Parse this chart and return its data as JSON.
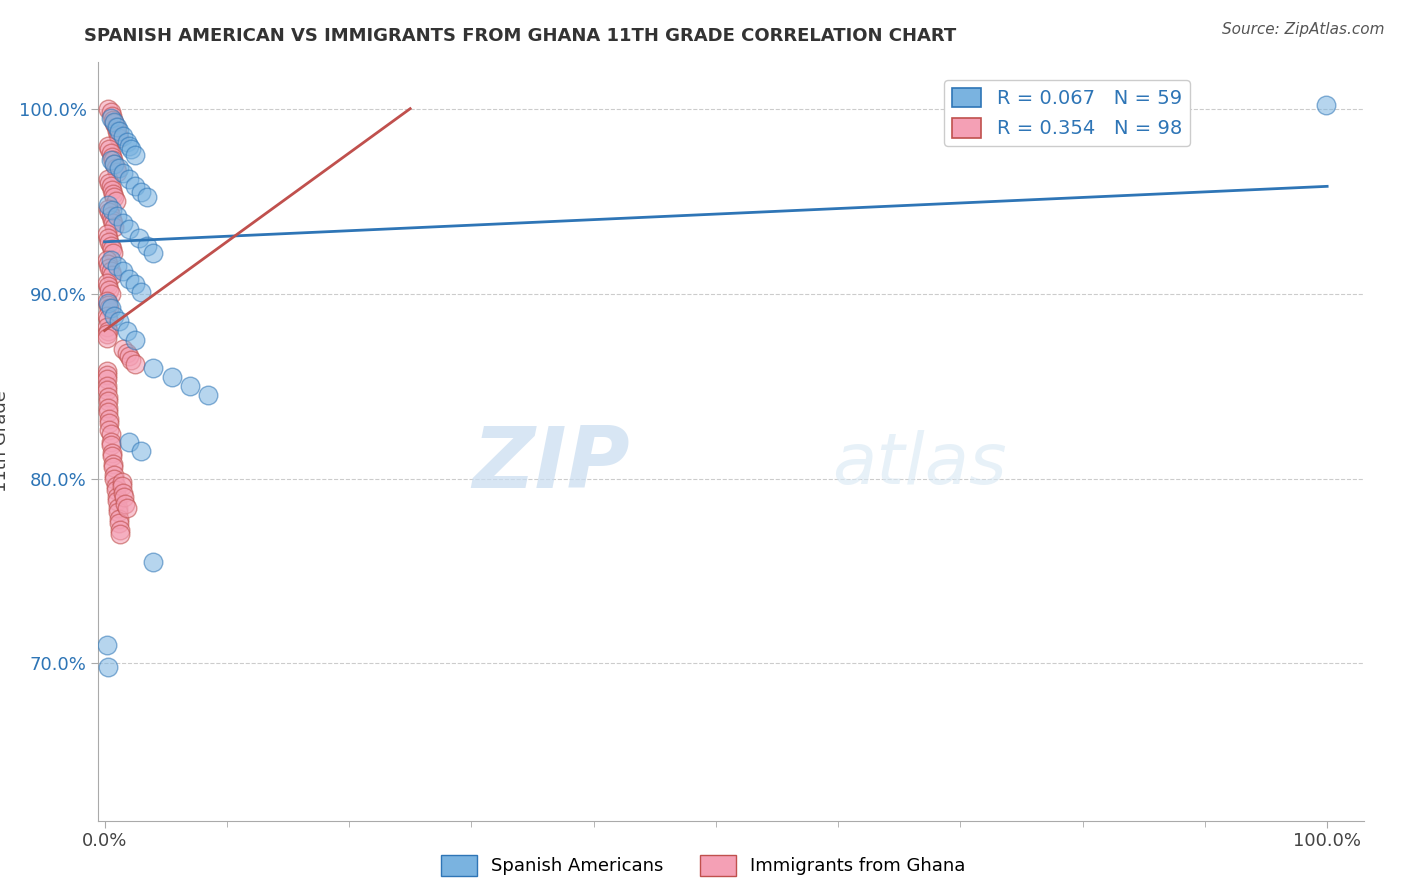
{
  "title": "SPANISH AMERICAN VS IMMIGRANTS FROM GHANA 11TH GRADE CORRELATION CHART",
  "source": "Source: ZipAtlas.com",
  "ylabel": "11th Grade",
  "x_tick_labels": [
    "0.0%",
    "100.0%"
  ],
  "y_ticks": [
    0.7,
    0.8,
    0.9,
    1.0
  ],
  "y_tick_labels": [
    "70.0%",
    "80.0%",
    "90.0%",
    "100.0%"
  ],
  "legend_r1": "R = 0.067",
  "legend_n1": "N = 59",
  "legend_r2": "R = 0.354",
  "legend_n2": "N = 98",
  "color_blue": "#7ab3e0",
  "color_pink": "#f4a0b5",
  "color_blue_line": "#2e75b6",
  "color_pink_line": "#c0504d",
  "color_text": "#2e75b6",
  "watermark_zip": "ZIP",
  "watermark_atlas": "atlas",
  "blue_x": [
    0.005,
    0.008,
    0.01,
    0.012,
    0.015,
    0.018,
    0.02,
    0.022,
    0.025,
    0.005,
    0.008,
    0.012,
    0.015,
    0.02,
    0.025,
    0.03,
    0.035,
    0.003,
    0.006,
    0.01,
    0.015,
    0.02,
    0.028,
    0.035,
    0.04,
    0.005,
    0.01,
    0.015,
    0.02,
    0.025,
    0.03,
    0.003,
    0.005,
    0.008,
    0.012,
    0.018,
    0.025,
    0.04,
    0.055,
    0.07,
    0.085,
    0.02,
    0.03,
    0.002,
    0.003,
    0.04,
    0.999
  ],
  "blue_y": [
    0.995,
    0.993,
    0.99,
    0.988,
    0.985,
    0.982,
    0.98,
    0.978,
    0.975,
    0.972,
    0.97,
    0.968,
    0.965,
    0.962,
    0.958,
    0.955,
    0.952,
    0.948,
    0.945,
    0.942,
    0.938,
    0.935,
    0.93,
    0.926,
    0.922,
    0.918,
    0.915,
    0.912,
    0.908,
    0.905,
    0.901,
    0.895,
    0.892,
    0.888,
    0.885,
    0.88,
    0.875,
    0.86,
    0.855,
    0.85,
    0.845,
    0.82,
    0.815,
    0.71,
    0.698,
    0.755,
    1.002
  ],
  "pink_x": [
    0.003,
    0.005,
    0.006,
    0.007,
    0.008,
    0.009,
    0.01,
    0.011,
    0.012,
    0.003,
    0.004,
    0.005,
    0.006,
    0.007,
    0.008,
    0.009,
    0.01,
    0.003,
    0.004,
    0.005,
    0.006,
    0.007,
    0.008,
    0.009,
    0.003,
    0.004,
    0.005,
    0.006,
    0.007,
    0.008,
    0.002,
    0.003,
    0.004,
    0.005,
    0.006,
    0.007,
    0.002,
    0.003,
    0.004,
    0.005,
    0.006,
    0.002,
    0.003,
    0.004,
    0.005,
    0.002,
    0.003,
    0.004,
    0.002,
    0.003,
    0.002,
    0.003,
    0.002,
    0.002,
    0.015,
    0.018,
    0.02,
    0.022,
    0.025,
    0.002,
    0.002,
    0.002,
    0.002,
    0.002,
    0.003,
    0.003,
    0.003,
    0.003,
    0.004,
    0.004,
    0.004,
    0.005,
    0.005,
    0.005,
    0.006,
    0.006,
    0.007,
    0.007,
    0.008,
    0.008,
    0.009,
    0.009,
    0.01,
    0.01,
    0.011,
    0.011,
    0.012,
    0.012,
    0.013,
    0.013,
    0.014,
    0.014,
    0.015,
    0.016,
    0.017,
    0.018
  ],
  "pink_y": [
    1.0,
    0.998,
    0.996,
    0.994,
    0.992,
    0.99,
    0.988,
    0.986,
    0.984,
    0.98,
    0.978,
    0.976,
    0.974,
    0.972,
    0.97,
    0.968,
    0.966,
    0.962,
    0.96,
    0.958,
    0.956,
    0.954,
    0.952,
    0.95,
    0.946,
    0.944,
    0.942,
    0.94,
    0.938,
    0.936,
    0.932,
    0.93,
    0.928,
    0.926,
    0.924,
    0.922,
    0.918,
    0.916,
    0.914,
    0.912,
    0.91,
    0.906,
    0.904,
    0.902,
    0.9,
    0.896,
    0.894,
    0.892,
    0.888,
    0.886,
    0.882,
    0.88,
    0.878,
    0.876,
    0.87,
    0.868,
    0.866,
    0.864,
    0.862,
    0.858,
    0.856,
    0.854,
    0.85,
    0.848,
    0.844,
    0.842,
    0.838,
    0.836,
    0.832,
    0.83,
    0.826,
    0.824,
    0.82,
    0.818,
    0.814,
    0.812,
    0.808,
    0.806,
    0.802,
    0.8,
    0.796,
    0.794,
    0.79,
    0.788,
    0.784,
    0.782,
    0.778,
    0.776,
    0.772,
    0.77,
    0.798,
    0.796,
    0.792,
    0.79,
    0.786,
    0.784
  ]
}
